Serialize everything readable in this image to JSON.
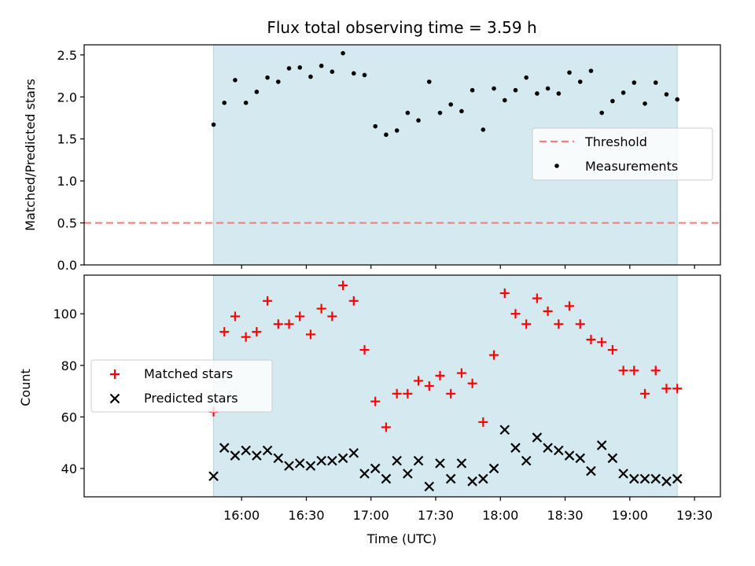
{
  "title": "Flux total observing time = 3.59 h",
  "colors": {
    "shade": "#d4eaf0",
    "shade_edge": "#b0d4de",
    "threshold": "#f08080",
    "measurements": "#000000",
    "matched": "#ff0000",
    "predicted": "#000000"
  },
  "top_panel": {
    "ylabel": "Matched/Predicted stars",
    "ylim": [
      0.0,
      2.62
    ],
    "yticks": [
      "0.0",
      "0.5",
      "1.0",
      "1.5",
      "2.0",
      "2.5"
    ],
    "legend": {
      "threshold": "Threshold",
      "measurements": "Measurements",
      "placement": "center-right"
    }
  },
  "bottom_panel": {
    "ylabel": "Count",
    "xlabel": "Time (UTC)",
    "ylim": [
      29,
      115
    ],
    "yticks": [
      "40",
      "60",
      "80",
      "100"
    ],
    "legend": {
      "matched": "Matched stars",
      "predicted": "Predicted stars",
      "placement": "center-left"
    }
  },
  "x_axis": {
    "xlim_minutes": [
      887,
      1182
    ],
    "ticks": [
      {
        "minute": 960,
        "label": "16:00"
      },
      {
        "minute": 990,
        "label": "16:30"
      },
      {
        "minute": 1020,
        "label": "17:00"
      },
      {
        "minute": 1050,
        "label": "17:30"
      },
      {
        "minute": 1080,
        "label": "18:00"
      },
      {
        "minute": 1110,
        "label": "18:30"
      },
      {
        "minute": 1140,
        "label": "19:00"
      },
      {
        "minute": 1170,
        "label": "19:30"
      }
    ]
  },
  "chart_data": {
    "type": "scatter",
    "title": "Flux total observing time = 3.59 h",
    "observing_window": {
      "start": "15:47",
      "end": "19:22",
      "hours": 3.59
    },
    "threshold": 0.5,
    "x": [
      "15:47",
      "15:52",
      "15:57",
      "16:02",
      "16:07",
      "16:12",
      "16:17",
      "16:22",
      "16:27",
      "16:32",
      "16:37",
      "16:42",
      "16:47",
      "16:52",
      "16:57",
      "17:02",
      "17:07",
      "17:12",
      "17:17",
      "17:22",
      "17:27",
      "17:32",
      "17:37",
      "17:42",
      "17:47",
      "17:52",
      "17:57",
      "18:02",
      "18:07",
      "18:12",
      "18:17",
      "18:22",
      "18:27",
      "18:32",
      "18:37",
      "18:42",
      "18:47",
      "18:52",
      "18:57",
      "19:02",
      "19:07",
      "19:12",
      "19:17",
      "19:22"
    ],
    "matched_stars": [
      62,
      93,
      99,
      91,
      93,
      105,
      96,
      96,
      99,
      92,
      102,
      99,
      111,
      105,
      86,
      66,
      56,
      69,
      69,
      74,
      72,
      76,
      69,
      77,
      73,
      58,
      84,
      108,
      100,
      96,
      106,
      101,
      96,
      103,
      96,
      90,
      89,
      86,
      78,
      78,
      69,
      78,
      71,
      71
    ],
    "predicted_stars": [
      37,
      48,
      45,
      47,
      45,
      47,
      44,
      41,
      42,
      41,
      43,
      43,
      44,
      46,
      38,
      40,
      36,
      43,
      38,
      43,
      33,
      42,
      36,
      42,
      35,
      36,
      40,
      55,
      48,
      43,
      52,
      48,
      47,
      45,
      44,
      39,
      49,
      44,
      38,
      36,
      36,
      36,
      35,
      36
    ],
    "ratio": [
      1.67,
      1.93,
      2.2,
      1.93,
      2.06,
      2.23,
      2.18,
      2.34,
      2.35,
      2.24,
      2.37,
      2.3,
      2.52,
      2.28,
      2.26,
      1.65,
      1.55,
      1.6,
      1.81,
      1.72,
      2.18,
      1.81,
      1.91,
      1.83,
      2.08,
      1.61,
      2.1,
      1.96,
      2.08,
      2.23,
      2.04,
      2.1,
      2.04,
      2.29,
      2.18,
      2.31,
      1.81,
      1.95,
      2.05,
      2.17,
      1.92,
      2.17,
      2.03,
      1.97
    ]
  }
}
